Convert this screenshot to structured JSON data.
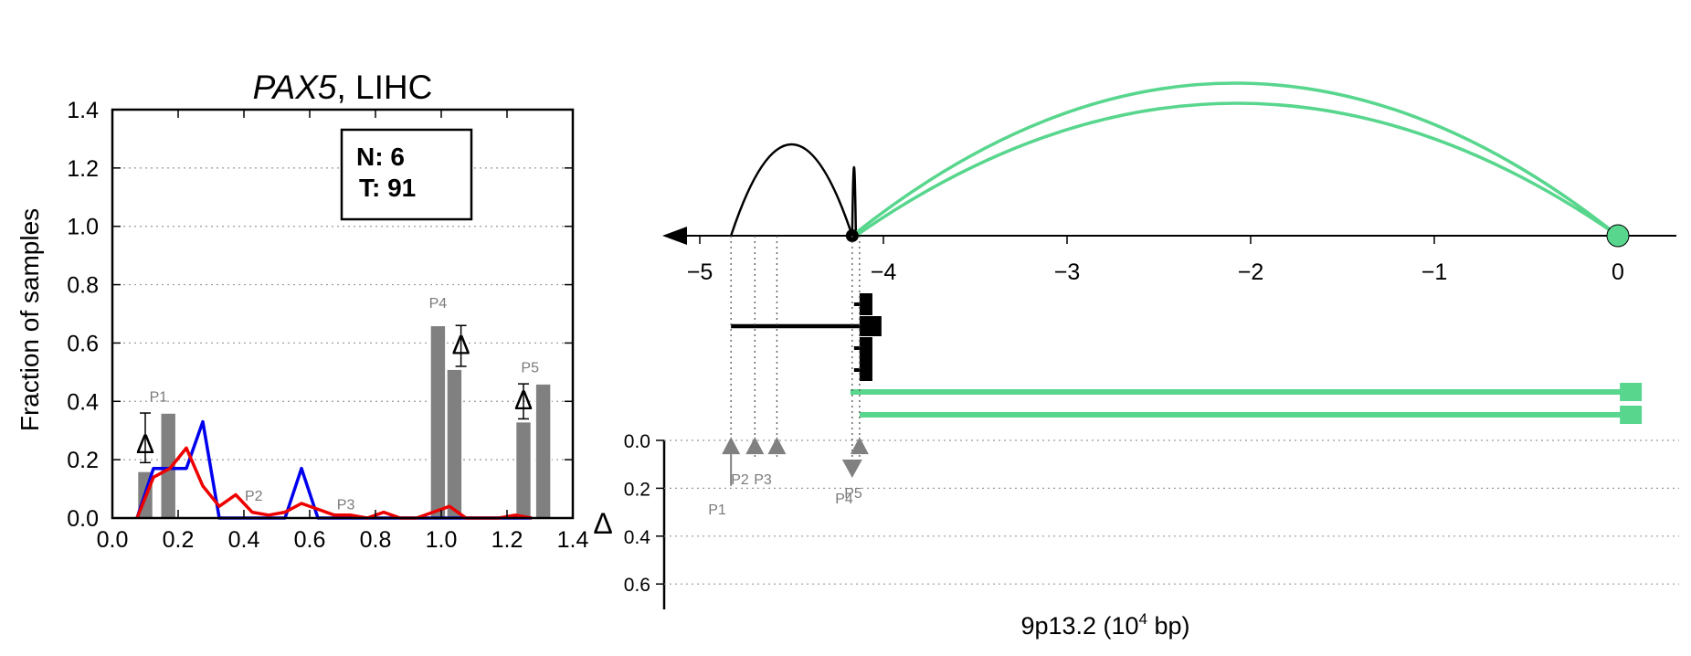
{
  "left_chart": {
    "title_gene": "PAX5",
    "title_rest": ", LIHC",
    "ylabel": "Fraction of samples",
    "legend": {
      "n": "N: 6",
      "t": "T: 91"
    },
    "delta_symbol": "Δ"
  },
  "right_chart": {
    "xlabel_main": "9p13.2 (10",
    "xlabel_sup": "4",
    "xlabel_end": " bp)",
    "delta_label": "Δ"
  },
  "colors": {
    "normal": "#0000ee",
    "tumor": "#ee0000",
    "bars": "#808080",
    "green": "#58d68d",
    "peak_text": "#7a7a7a"
  },
  "chart_data": [
    {
      "type": "bar",
      "ylabel": "Fraction of samples",
      "xlim": [
        0.0,
        1.4
      ],
      "ylim": [
        0.0,
        1.4
      ],
      "xticks": [
        "0.0",
        "0.2",
        "0.4",
        "0.6",
        "0.8",
        "1.0",
        "1.2",
        "1.4"
      ],
      "yticks": [
        "0.0",
        "0.2",
        "0.4",
        "0.6",
        "0.8",
        "1.0",
        "1.2",
        "1.4"
      ],
      "grid": "horizontal dotted",
      "bars": [
        {
          "x": 0.1,
          "value": 0.16,
          "group": "P1"
        },
        {
          "x": 0.17,
          "value": 0.36,
          "group": "P1"
        },
        {
          "x": 0.99,
          "value": 0.66,
          "group": "P4"
        },
        {
          "x": 1.04,
          "value": 0.51,
          "group": "P4"
        },
        {
          "x": 1.25,
          "value": 0.33,
          "group": "P5"
        },
        {
          "x": 1.31,
          "value": 0.46,
          "group": "P5"
        }
      ],
      "peak_labels": [
        {
          "label": "P1",
          "x": 0.14,
          "y": 0.4
        },
        {
          "label": "P2",
          "x": 0.43,
          "y": 0.06
        },
        {
          "label": "P3",
          "x": 0.71,
          "y": 0.03
        },
        {
          "label": "P4",
          "x": 0.99,
          "y": 0.72
        },
        {
          "label": "P5",
          "x": 1.27,
          "y": 0.5
        }
      ],
      "deltas": [
        {
          "x": 0.1,
          "y": 0.26,
          "err_low": 0.19,
          "err_high": 0.36
        },
        {
          "x": 1.06,
          "y": 0.6,
          "err_low": 0.52,
          "err_high": 0.66
        },
        {
          "x": 1.25,
          "y": 0.41,
          "err_low": 0.34,
          "err_high": 0.46
        }
      ],
      "series": [
        {
          "name": "N",
          "color": "#0000ee",
          "x": [
            0.075,
            0.125,
            0.175,
            0.225,
            0.275,
            0.325,
            0.375,
            0.425,
            0.475,
            0.525,
            0.575,
            0.625,
            0.675,
            0.725,
            0.775,
            0.825,
            0.875,
            0.925,
            0.975,
            1.025,
            1.075,
            1.125,
            1.175,
            1.225,
            1.275
          ],
          "values": [
            0.0,
            0.17,
            0.17,
            0.17,
            0.33,
            0.0,
            0.0,
            0.0,
            0.0,
            0.0,
            0.17,
            0.0,
            0.0,
            0.0,
            0.0,
            0.0,
            0.0,
            0.0,
            0.0,
            0.0,
            0.0,
            0.0,
            0.0,
            0.0,
            0.0
          ]
        },
        {
          "name": "T",
          "color": "#ee0000",
          "x": [
            0.075,
            0.125,
            0.175,
            0.225,
            0.275,
            0.325,
            0.375,
            0.425,
            0.475,
            0.525,
            0.575,
            0.625,
            0.675,
            0.725,
            0.775,
            0.825,
            0.875,
            0.925,
            0.975,
            1.025,
            1.075,
            1.125,
            1.175,
            1.225,
            1.275
          ],
          "values": [
            0.0,
            0.14,
            0.17,
            0.24,
            0.11,
            0.04,
            0.08,
            0.02,
            0.01,
            0.02,
            0.05,
            0.03,
            0.01,
            0.01,
            0.0,
            0.02,
            0.0,
            0.0,
            0.02,
            0.04,
            0.0,
            0.0,
            0.0,
            0.01,
            0.0
          ]
        }
      ]
    },
    {
      "type": "line",
      "xlabel": "9p13.2 (10^4 bp)",
      "xlim": [
        -5.1,
        0.3
      ],
      "xticks": [
        "−5",
        "−4",
        "−3",
        "−2",
        "−1",
        "0"
      ],
      "xtick_values": [
        -5,
        -4,
        -3,
        -2,
        -1,
        0
      ],
      "delta_ylim": [
        0.0,
        0.7
      ],
      "delta_yticks": [
        "0.0",
        "0.2",
        "0.4",
        "0.6"
      ],
      "delta_ytick_values": [
        0.0,
        0.2,
        0.4,
        0.6
      ],
      "anchor_x": 0.0,
      "black_node_x": -4.17,
      "arcs": [
        {
          "from": -4.17,
          "to": -4.83,
          "color": "#000000",
          "height": 1.0
        },
        {
          "from": -4.17,
          "to": -4.15,
          "color": "#000000",
          "height": 0.75
        },
        {
          "from": -4.15,
          "to": 0.0,
          "color": "#58d68d",
          "height": 1.45
        },
        {
          "from": -4.17,
          "to": 0.0,
          "color": "#58d68d",
          "height": 1.67
        }
      ],
      "transcripts": [
        {
          "start": -4.83,
          "end": -4.13,
          "color": "#000000",
          "row": 1
        },
        {
          "start": -4.13,
          "end": -4.06,
          "color": "#000000",
          "row": 0
        },
        {
          "start": -4.13,
          "end": -4.06,
          "color": "#000000",
          "row": 2
        },
        {
          "start": -4.13,
          "end": -4.06,
          "color": "#000000",
          "row": 3
        },
        {
          "start": -4.18,
          "end": 0.12,
          "color": "#58d68d",
          "row": 4
        },
        {
          "start": -4.13,
          "end": 0.12,
          "color": "#58d68d",
          "row": 5
        }
      ],
      "delta_markers": [
        {
          "label": "P1",
          "x": -4.83,
          "delta": 0.04,
          "dir": "up"
        },
        {
          "label": "P2",
          "x": -4.7,
          "delta": 0.04,
          "dir": "up"
        },
        {
          "label": "P3",
          "x": -4.58,
          "delta": 0.04,
          "dir": "up"
        },
        {
          "label": "P4",
          "x": -4.17,
          "delta": 0.11,
          "dir": "down"
        },
        {
          "label": "P5",
          "x": -4.13,
          "delta": 0.04,
          "dir": "up"
        }
      ]
    }
  ]
}
